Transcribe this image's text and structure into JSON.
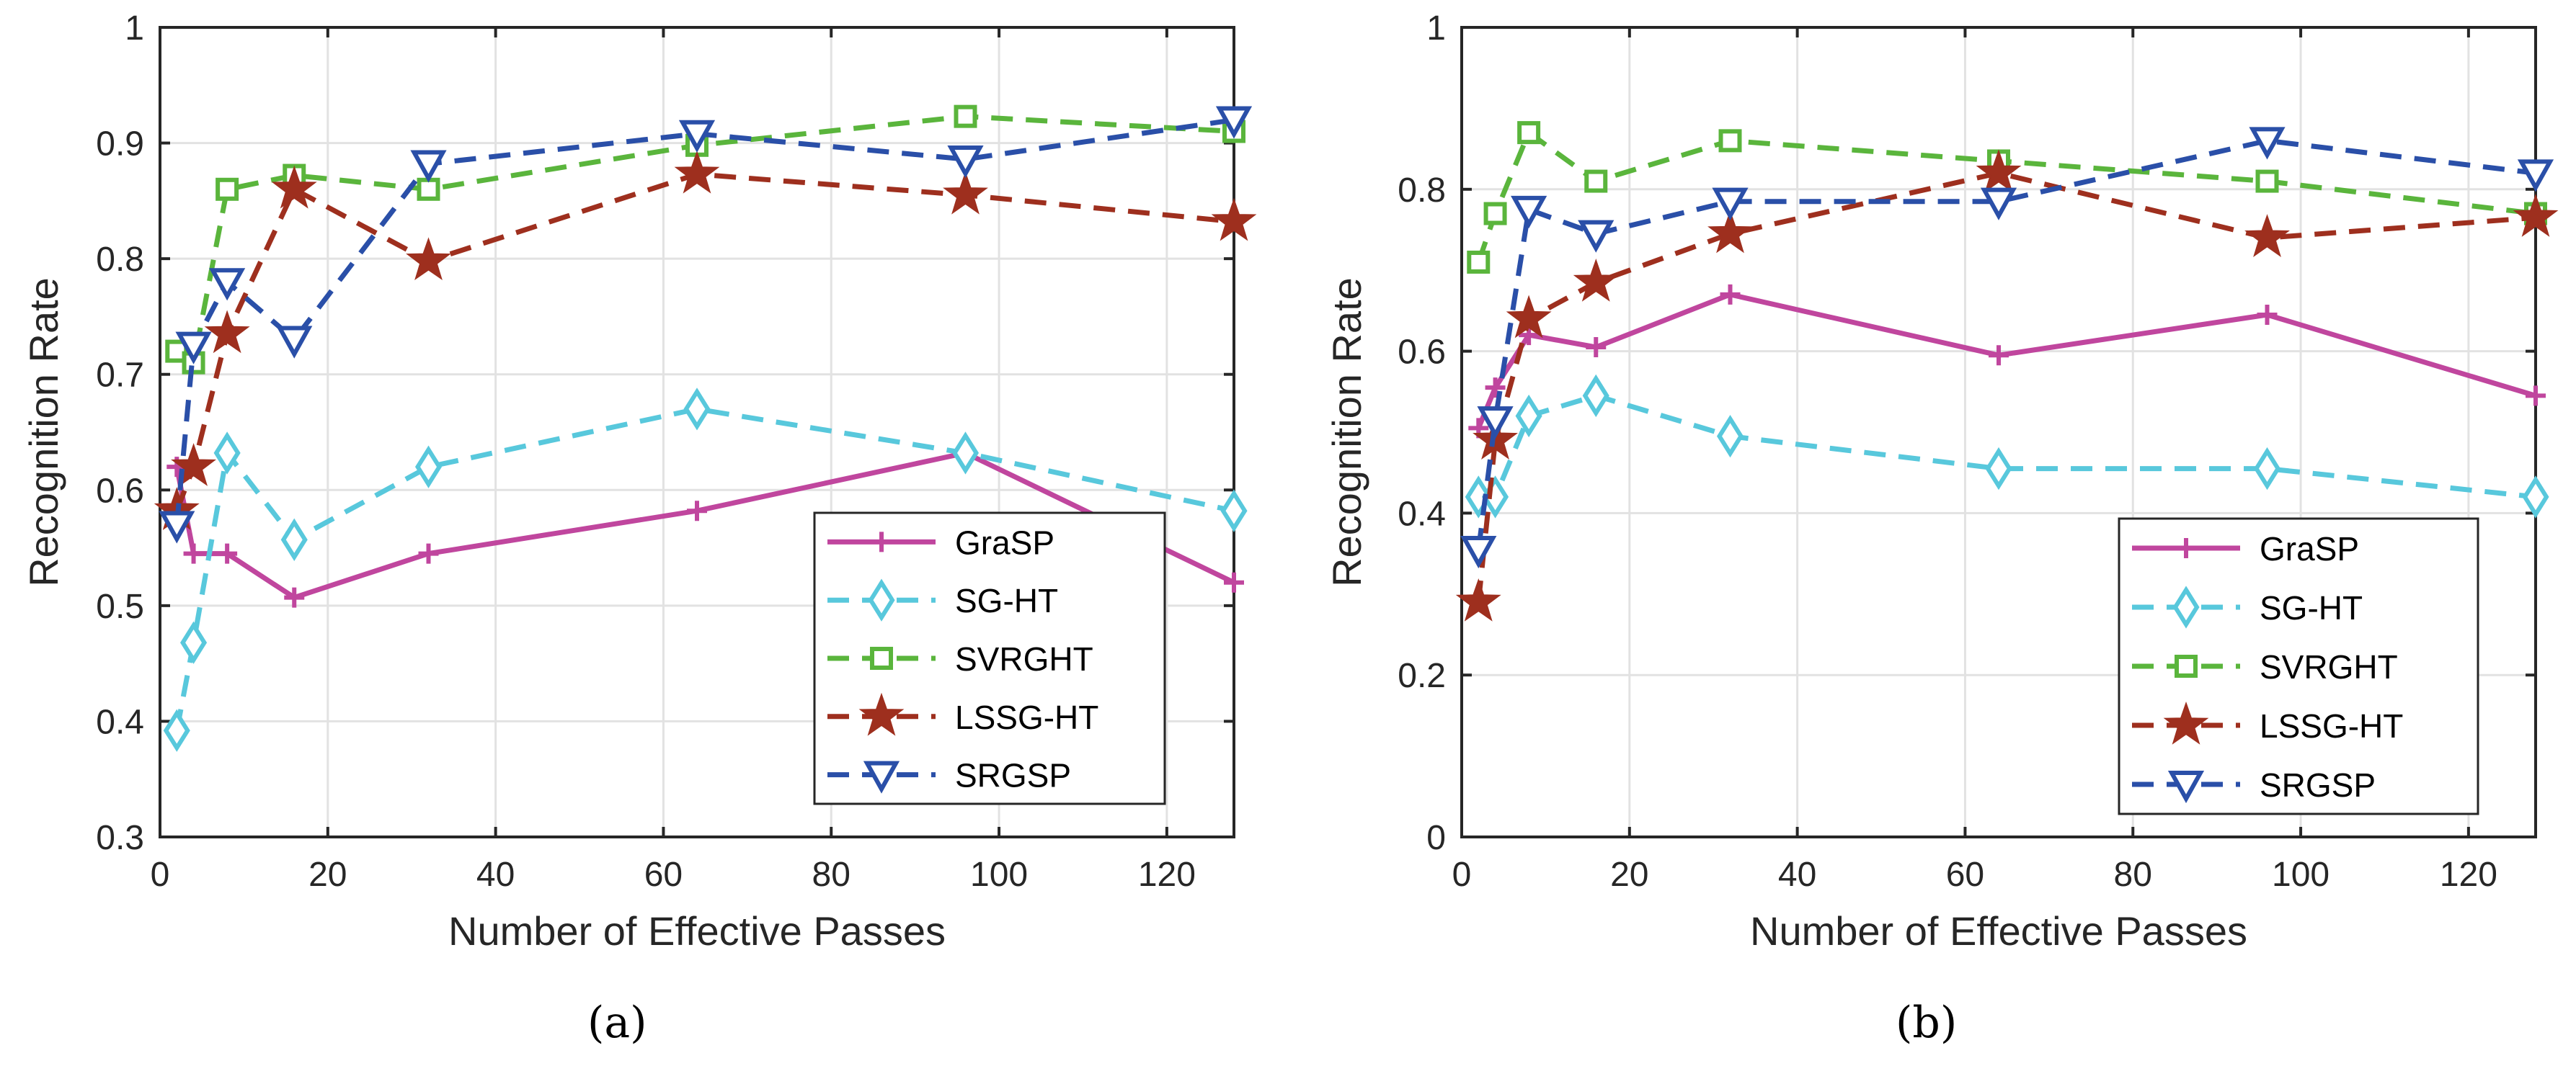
{
  "chart_data": [
    {
      "type": "line",
      "panel_label": "(a)",
      "xlabel": "Number of Effective Passes",
      "ylabel": "Recognition Rate",
      "xlim": [
        0,
        128
      ],
      "ylim": [
        0.3,
        1
      ],
      "xticks": [
        0,
        20,
        40,
        60,
        80,
        100,
        120
      ],
      "yticks": [
        0.3,
        0.4,
        0.5,
        0.6,
        0.7,
        0.8,
        0.9,
        1
      ],
      "ytick_labels": [
        "0.3",
        "0.4",
        "0.5",
        "0.6",
        "0.7",
        "0.8",
        "0.9",
        "1"
      ],
      "grid": true,
      "legend_position": "bottom-right",
      "series": [
        {
          "name": "GraSP",
          "color": "#c0469e",
          "marker": "plus",
          "dash": "solid",
          "x": [
            2,
            4,
            8,
            16,
            32,
            64,
            96,
            128
          ],
          "y": [
            0.62,
            0.545,
            0.545,
            0.507,
            0.545,
            0.582,
            0.632,
            0.52
          ]
        },
        {
          "name": "SG-HT",
          "color": "#58c8dc",
          "marker": "diamond",
          "dash": "dashed",
          "x": [
            2,
            4,
            8,
            16,
            32,
            64,
            96,
            128
          ],
          "y": [
            0.392,
            0.468,
            0.632,
            0.557,
            0.62,
            0.67,
            0.632,
            0.582
          ]
        },
        {
          "name": "SVRGHT",
          "color": "#5ab53c",
          "marker": "square",
          "dash": "dashed",
          "x": [
            2,
            4,
            8,
            16,
            32,
            64,
            96,
            128
          ],
          "y": [
            0.72,
            0.71,
            0.86,
            0.872,
            0.86,
            0.898,
            0.923,
            0.91
          ]
        },
        {
          "name": "LSSG-HT",
          "color": "#9e2f1e",
          "marker": "star",
          "dash": "dashed",
          "x": [
            2,
            4,
            8,
            16,
            32,
            64,
            96,
            128
          ],
          "y": [
            0.582,
            0.62,
            0.735,
            0.86,
            0.798,
            0.873,
            0.855,
            0.832
          ]
        },
        {
          "name": "SRGSP",
          "color": "#2a4fa8",
          "marker": "triangle-down",
          "dash": "dashed",
          "x": [
            2,
            4,
            8,
            16,
            32,
            64,
            96,
            128
          ],
          "y": [
            0.57,
            0.725,
            0.78,
            0.73,
            0.882,
            0.908,
            0.886,
            0.92
          ]
        }
      ]
    },
    {
      "type": "line",
      "panel_label": "(b)",
      "xlabel": "Number of Effective Passes",
      "ylabel": "Recognition Rate",
      "xlim": [
        0,
        128
      ],
      "ylim": [
        0,
        1
      ],
      "xticks": [
        0,
        20,
        40,
        60,
        80,
        100,
        120
      ],
      "yticks": [
        0,
        0.2,
        0.4,
        0.6,
        0.8,
        1
      ],
      "ytick_labels": [
        "0",
        "0.2",
        "0.4",
        "0.6",
        "0.8",
        "1"
      ],
      "grid": true,
      "legend_position": "bottom-right",
      "series": [
        {
          "name": "GraSP",
          "color": "#c0469e",
          "marker": "plus",
          "dash": "solid",
          "x": [
            2,
            4,
            8,
            16,
            32,
            64,
            96,
            128
          ],
          "y": [
            0.505,
            0.555,
            0.62,
            0.605,
            0.67,
            0.595,
            0.645,
            0.545
          ]
        },
        {
          "name": "SG-HT",
          "color": "#58c8dc",
          "marker": "diamond",
          "dash": "dashed",
          "x": [
            2,
            4,
            8,
            16,
            32,
            64,
            96,
            128
          ],
          "y": [
            0.42,
            0.42,
            0.52,
            0.545,
            0.495,
            0.455,
            0.455,
            0.42
          ]
        },
        {
          "name": "SVRGHT",
          "color": "#5ab53c",
          "marker": "square",
          "dash": "dashed",
          "x": [
            2,
            4,
            8,
            16,
            32,
            64,
            96,
            128
          ],
          "y": [
            0.71,
            0.77,
            0.87,
            0.81,
            0.86,
            0.835,
            0.81,
            0.77
          ]
        },
        {
          "name": "LSSG-HT",
          "color": "#9e2f1e",
          "marker": "star",
          "dash": "dashed",
          "x": [
            2,
            4,
            8,
            16,
            32,
            64,
            96,
            128
          ],
          "y": [
            0.29,
            0.49,
            0.64,
            0.685,
            0.745,
            0.82,
            0.74,
            0.765
          ]
        },
        {
          "name": "SRGSP",
          "color": "#2a4fa8",
          "marker": "triangle-down",
          "dash": "dashed",
          "x": [
            2,
            4,
            8,
            16,
            32,
            64,
            96,
            128
          ],
          "y": [
            0.355,
            0.515,
            0.775,
            0.745,
            0.785,
            0.785,
            0.86,
            0.82
          ]
        }
      ]
    }
  ]
}
